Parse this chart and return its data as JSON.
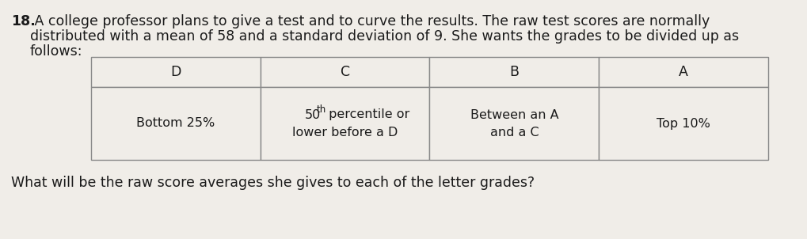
{
  "problem_number": "18.",
  "problem_text_line1": " A college professor plans to give a test and to curve the results. The raw test scores are normally",
  "problem_text_line2": "distributed with a mean of 58 and a standard deviation of 9. She wants the grades to be divided up as",
  "problem_text_line3": "follows:",
  "question_text": "What will be the raw score averages she gives to each of the letter grades?",
  "table_headers": [
    "D",
    "C",
    "B",
    "A"
  ],
  "col1_desc": "Bottom 25%",
  "col2_line1_main": " percentile or",
  "col2_line1_num": "50",
  "col2_line1_sup": "th",
  "col2_line2": "lower before a D",
  "col3_line1": "Between an A",
  "col3_line2": "and a C",
  "col4_desc": "Top 10%",
  "bg_color": "#f0ede8",
  "table_cell_bg": "#f0ede8",
  "text_color": "#1a1a1a",
  "font_size_problem": 12.5,
  "font_size_table": 11.5,
  "font_size_question": 12.5
}
